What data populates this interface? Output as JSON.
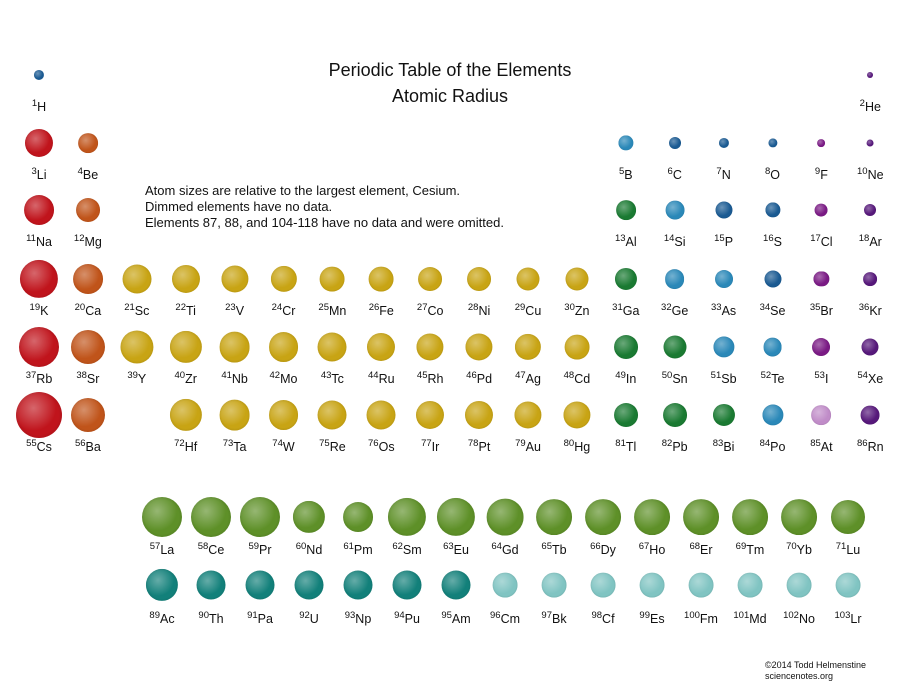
{
  "title": "Periodic Table of the Elements",
  "subtitle": "Atomic Radius",
  "notes": [
    "Atom sizes are relative to the largest element, Cesium.",
    "Dimmed elements have no data.",
    "Elements 87, 88, and 104-118 have no data and were omitted."
  ],
  "credit": [
    "©2014 Todd Helmenstine",
    "sciencenotes.org"
  ],
  "colors": {
    "alkali": "#c0141c",
    "alkaline": "#c0541a",
    "transition": "#c8a414",
    "post": "#1a7a32",
    "metalloid": "#2a88b8",
    "nonmetal": "#1a5a92",
    "halogen": "#7a1a84",
    "noble": "#56187a",
    "lanthanide": "#5e9028",
    "actinide": "#12807a",
    "dim_halogen": "#c08cc8",
    "dim_actinide": "#80c4c2"
  },
  "size_note": "size = sphere diameter relative to Cesium (100)",
  "elements": [
    {
      "z": 1,
      "sym": "H",
      "size": 22,
      "cat": "nonmetal"
    },
    {
      "z": 2,
      "sym": "He",
      "size": 13,
      "cat": "noble"
    },
    {
      "z": 3,
      "sym": "Li",
      "size": 61,
      "cat": "alkali"
    },
    {
      "z": 4,
      "sym": "Be",
      "size": 43,
      "cat": "alkaline"
    },
    {
      "z": 5,
      "sym": "B",
      "size": 33,
      "cat": "metalloid"
    },
    {
      "z": 6,
      "sym": "C",
      "size": 26,
      "cat": "nonmetal"
    },
    {
      "z": 7,
      "sym": "N",
      "size": 22,
      "cat": "nonmetal"
    },
    {
      "z": 8,
      "sym": "O",
      "size": 20,
      "cat": "nonmetal"
    },
    {
      "z": 9,
      "sym": "F",
      "size": 17,
      "cat": "halogen"
    },
    {
      "z": 10,
      "sym": "Ne",
      "size": 15,
      "cat": "noble"
    },
    {
      "z": 11,
      "sym": "Na",
      "size": 65,
      "cat": "alkali"
    },
    {
      "z": 12,
      "sym": "Mg",
      "size": 52,
      "cat": "alkaline"
    },
    {
      "z": 13,
      "sym": "Al",
      "size": 43,
      "cat": "post"
    },
    {
      "z": 14,
      "sym": "Si",
      "size": 41,
      "cat": "metalloid"
    },
    {
      "z": 15,
      "sym": "P",
      "size": 37,
      "cat": "nonmetal"
    },
    {
      "z": 16,
      "sym": "S",
      "size": 33,
      "cat": "nonmetal"
    },
    {
      "z": 17,
      "sym": "Cl",
      "size": 28,
      "cat": "halogen"
    },
    {
      "z": 18,
      "sym": "Ar",
      "size": 26,
      "cat": "noble"
    },
    {
      "z": 19,
      "sym": "K",
      "size": 83,
      "cat": "alkali"
    },
    {
      "z": 20,
      "sym": "Ca",
      "size": 65,
      "cat": "alkaline"
    },
    {
      "z": 21,
      "sym": "Sc",
      "size": 63,
      "cat": "transition"
    },
    {
      "z": 22,
      "sym": "Ti",
      "size": 61,
      "cat": "transition"
    },
    {
      "z": 23,
      "sym": "V",
      "size": 59,
      "cat": "transition"
    },
    {
      "z": 24,
      "sym": "Cr",
      "size": 57,
      "cat": "transition"
    },
    {
      "z": 25,
      "sym": "Mn",
      "size": 54,
      "cat": "transition"
    },
    {
      "z": 26,
      "sym": "Fe",
      "size": 54,
      "cat": "transition"
    },
    {
      "z": 27,
      "sym": "Co",
      "size": 52,
      "cat": "transition"
    },
    {
      "z": 28,
      "sym": "Ni",
      "size": 52,
      "cat": "transition"
    },
    {
      "z": 29,
      "sym": "Cu",
      "size": 50,
      "cat": "transition"
    },
    {
      "z": 30,
      "sym": "Zn",
      "size": 50,
      "cat": "transition"
    },
    {
      "z": 31,
      "sym": "Ga",
      "size": 48,
      "cat": "post"
    },
    {
      "z": 32,
      "sym": "Ge",
      "size": 43,
      "cat": "metalloid"
    },
    {
      "z": 33,
      "sym": "As",
      "size": 39,
      "cat": "metalloid"
    },
    {
      "z": 34,
      "sym": "Se",
      "size": 37,
      "cat": "nonmetal"
    },
    {
      "z": 35,
      "sym": "Br",
      "size": 33,
      "cat": "halogen"
    },
    {
      "z": 36,
      "sym": "Kr",
      "size": 30,
      "cat": "noble"
    },
    {
      "z": 37,
      "sym": "Rb",
      "size": 87,
      "cat": "alkali"
    },
    {
      "z": 38,
      "sym": "Sr",
      "size": 74,
      "cat": "alkaline"
    },
    {
      "z": 39,
      "sym": "Y",
      "size": 72,
      "cat": "transition"
    },
    {
      "z": 40,
      "sym": "Zr",
      "size": 70,
      "cat": "transition"
    },
    {
      "z": 41,
      "sym": "Nb",
      "size": 67,
      "cat": "transition"
    },
    {
      "z": 42,
      "sym": "Mo",
      "size": 65,
      "cat": "transition"
    },
    {
      "z": 43,
      "sym": "Tc",
      "size": 63,
      "cat": "transition"
    },
    {
      "z": 44,
      "sym": "Ru",
      "size": 61,
      "cat": "transition"
    },
    {
      "z": 45,
      "sym": "Rh",
      "size": 59,
      "cat": "transition"
    },
    {
      "z": 46,
      "sym": "Pd",
      "size": 59,
      "cat": "transition"
    },
    {
      "z": 47,
      "sym": "Ag",
      "size": 57,
      "cat": "transition"
    },
    {
      "z": 48,
      "sym": "Cd",
      "size": 54,
      "cat": "transition"
    },
    {
      "z": 49,
      "sym": "In",
      "size": 52,
      "cat": "post"
    },
    {
      "z": 50,
      "sym": "Sn",
      "size": 50,
      "cat": "post"
    },
    {
      "z": 51,
      "sym": "Sb",
      "size": 46,
      "cat": "metalloid"
    },
    {
      "z": 52,
      "sym": "Te",
      "size": 41,
      "cat": "metalloid"
    },
    {
      "z": 53,
      "sym": "I",
      "size": 39,
      "cat": "halogen"
    },
    {
      "z": 54,
      "sym": "Xe",
      "size": 37,
      "cat": "noble"
    },
    {
      "z": 55,
      "sym": "Cs",
      "size": 100,
      "cat": "alkali"
    },
    {
      "z": 56,
      "sym": "Ba",
      "size": 74,
      "cat": "alkaline"
    },
    {
      "z": 72,
      "sym": "Hf",
      "size": 70,
      "cat": "transition"
    },
    {
      "z": 73,
      "sym": "Ta",
      "size": 67,
      "cat": "transition"
    },
    {
      "z": 74,
      "sym": "W",
      "size": 65,
      "cat": "transition"
    },
    {
      "z": 75,
      "sym": "Re",
      "size": 63,
      "cat": "transition"
    },
    {
      "z": 76,
      "sym": "Os",
      "size": 63,
      "cat": "transition"
    },
    {
      "z": 77,
      "sym": "Ir",
      "size": 61,
      "cat": "transition"
    },
    {
      "z": 78,
      "sym": "Pt",
      "size": 61,
      "cat": "transition"
    },
    {
      "z": 79,
      "sym": "Au",
      "size": 59,
      "cat": "transition"
    },
    {
      "z": 80,
      "sym": "Hg",
      "size": 59,
      "cat": "transition"
    },
    {
      "z": 81,
      "sym": "Tl",
      "size": 52,
      "cat": "post"
    },
    {
      "z": 82,
      "sym": "Pb",
      "size": 52,
      "cat": "post"
    },
    {
      "z": 83,
      "sym": "Bi",
      "size": 48,
      "cat": "post"
    },
    {
      "z": 84,
      "sym": "Po",
      "size": 46,
      "cat": "metalloid"
    },
    {
      "z": 85,
      "sym": "At",
      "size": 43,
      "cat": "halogen",
      "dim": true
    },
    {
      "z": 86,
      "sym": "Rn",
      "size": 41,
      "cat": "noble"
    },
    {
      "z": 57,
      "sym": "La",
      "size": 87,
      "cat": "lanthanide"
    },
    {
      "z": 58,
      "sym": "Ce",
      "size": 87,
      "cat": "lanthanide"
    },
    {
      "z": 59,
      "sym": "Pr",
      "size": 87,
      "cat": "lanthanide"
    },
    {
      "z": 60,
      "sym": "Nd",
      "size": 70,
      "cat": "lanthanide"
    },
    {
      "z": 61,
      "sym": "Pm",
      "size": 65,
      "cat": "lanthanide"
    },
    {
      "z": 62,
      "sym": "Sm",
      "size": 83,
      "cat": "lanthanide"
    },
    {
      "z": 63,
      "sym": "Eu",
      "size": 83,
      "cat": "lanthanide"
    },
    {
      "z": 64,
      "sym": "Gd",
      "size": 80,
      "cat": "lanthanide"
    },
    {
      "z": 65,
      "sym": "Tb",
      "size": 78,
      "cat": "lanthanide"
    },
    {
      "z": 66,
      "sym": "Dy",
      "size": 78,
      "cat": "lanthanide"
    },
    {
      "z": 67,
      "sym": "Ho",
      "size": 78,
      "cat": "lanthanide"
    },
    {
      "z": 68,
      "sym": "Er",
      "size": 78,
      "cat": "lanthanide"
    },
    {
      "z": 69,
      "sym": "Tm",
      "size": 78,
      "cat": "lanthanide"
    },
    {
      "z": 70,
      "sym": "Yb",
      "size": 78,
      "cat": "lanthanide"
    },
    {
      "z": 71,
      "sym": "Lu",
      "size": 74,
      "cat": "lanthanide"
    },
    {
      "z": 89,
      "sym": "Ac",
      "size": 70,
      "cat": "actinide"
    },
    {
      "z": 90,
      "sym": "Th",
      "size": 63,
      "cat": "actinide"
    },
    {
      "z": 91,
      "sym": "Pa",
      "size": 63,
      "cat": "actinide"
    },
    {
      "z": 92,
      "sym": "U",
      "size": 63,
      "cat": "actinide"
    },
    {
      "z": 93,
      "sym": "Np",
      "size": 63,
      "cat": "actinide"
    },
    {
      "z": 94,
      "sym": "Pu",
      "size": 63,
      "cat": "actinide"
    },
    {
      "z": 95,
      "sym": "Am",
      "size": 63,
      "cat": "actinide"
    },
    {
      "z": 96,
      "sym": "Cm",
      "size": 54,
      "cat": "actinide",
      "dim": true
    },
    {
      "z": 97,
      "sym": "Bk",
      "size": 54,
      "cat": "actinide",
      "dim": true
    },
    {
      "z": 98,
      "sym": "Cf",
      "size": 54,
      "cat": "actinide",
      "dim": true
    },
    {
      "z": 99,
      "sym": "Es",
      "size": 54,
      "cat": "actinide",
      "dim": true
    },
    {
      "z": 100,
      "sym": "Fm",
      "size": 54,
      "cat": "actinide",
      "dim": true
    },
    {
      "z": 101,
      "sym": "Md",
      "size": 54,
      "cat": "actinide",
      "dim": true
    },
    {
      "z": 102,
      "sym": "No",
      "size": 54,
      "cat": "actinide",
      "dim": true
    },
    {
      "z": 103,
      "sym": "Lr",
      "size": 54,
      "cat": "actinide",
      "dim": true
    }
  ]
}
